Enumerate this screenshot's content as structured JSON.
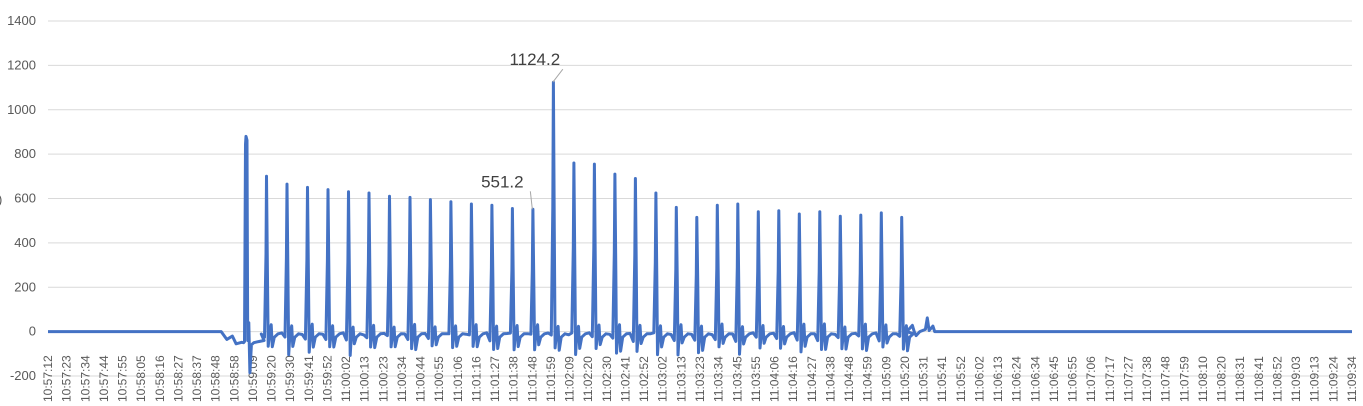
{
  "chart_data": {
    "type": "line",
    "title": "",
    "xlabel": "",
    "ylabel": "",
    "ylabel_fragment": ")",
    "ylim": [
      -200,
      1400
    ],
    "yticks": [
      -200,
      0,
      200,
      400,
      600,
      800,
      1000,
      1200,
      1400
    ],
    "grid": "horizontal",
    "legend": "none",
    "series_color": "#4472C4",
    "x_tick_labels": [
      "10:57:12",
      "10:57:23",
      "10:57:34",
      "10:57:44",
      "10:57:55",
      "10:58:05",
      "10:58:16",
      "10:58:27",
      "10:58:37",
      "10:58:48",
      "10:58:58",
      "10:59:09",
      "10:59:20",
      "10:59:30",
      "10:59:41",
      "10:59:52",
      "11:00:02",
      "11:00:13",
      "11:00:23",
      "11:00:34",
      "11:00:44",
      "11:00:55",
      "11:01:06",
      "11:01:16",
      "11:01:27",
      "11:01:38",
      "11:01:48",
      "11:01:59",
      "11:02:09",
      "11:02:20",
      "11:02:30",
      "11:02:41",
      "11:02:52",
      "11:03:02",
      "11:03:13",
      "11:03:23",
      "11:03:34",
      "11:03:45",
      "11:03:55",
      "11:04:06",
      "11:04:16",
      "11:04:27",
      "11:04:38",
      "11:04:48",
      "11:04:59",
      "11:05:09",
      "11:05:20",
      "11:05:31",
      "11:05:41",
      "11:05:52",
      "11:06:02",
      "11:06:13",
      "11:06:24",
      "11:06:34",
      "11:06:45",
      "11:06:55",
      "11:07:06",
      "11:07:17",
      "11:07:27",
      "11:07:38",
      "11:07:48",
      "11:07:59",
      "11:08:10",
      "11:08:20",
      "11:08:31",
      "11:08:41",
      "11:08:52",
      "11:09:03",
      "11:09:13",
      "11:09:24",
      "11:09:34"
    ],
    "peaks": [
      {
        "x": 10.6,
        "value": 880
      },
      {
        "x": 11.7,
        "value": 700
      },
      {
        "x": 12.8,
        "value": 665
      },
      {
        "x": 13.9,
        "value": 650
      },
      {
        "x": 15.0,
        "value": 640
      },
      {
        "x": 16.1,
        "value": 630
      },
      {
        "x": 17.2,
        "value": 625
      },
      {
        "x": 18.3,
        "value": 610
      },
      {
        "x": 19.4,
        "value": 605
      },
      {
        "x": 20.5,
        "value": 595
      },
      {
        "x": 21.6,
        "value": 585
      },
      {
        "x": 22.7,
        "value": 575
      },
      {
        "x": 23.8,
        "value": 570
      },
      {
        "x": 24.9,
        "value": 555
      },
      {
        "x": 26.0,
        "value": 551.2
      },
      {
        "x": 27.1,
        "value": 1124.2
      },
      {
        "x": 28.2,
        "value": 760
      },
      {
        "x": 29.3,
        "value": 755
      },
      {
        "x": 30.4,
        "value": 710
      },
      {
        "x": 31.5,
        "value": 690
      },
      {
        "x": 32.6,
        "value": 625
      },
      {
        "x": 33.7,
        "value": 560
      },
      {
        "x": 34.8,
        "value": 515
      },
      {
        "x": 35.9,
        "value": 570
      },
      {
        "x": 37.0,
        "value": 575
      },
      {
        "x": 38.1,
        "value": 540
      },
      {
        "x": 39.2,
        "value": 545
      },
      {
        "x": 40.3,
        "value": 530
      },
      {
        "x": 41.4,
        "value": 540
      },
      {
        "x": 42.5,
        "value": 520
      },
      {
        "x": 43.6,
        "value": 525
      },
      {
        "x": 44.7,
        "value": 535
      },
      {
        "x": 45.8,
        "value": 515
      }
    ],
    "annotations": [
      {
        "text": "1124.2",
        "x": 27.1,
        "value": 1124.2
      },
      {
        "text": "551.2",
        "x": 26.0,
        "value": 551.2
      }
    ]
  }
}
